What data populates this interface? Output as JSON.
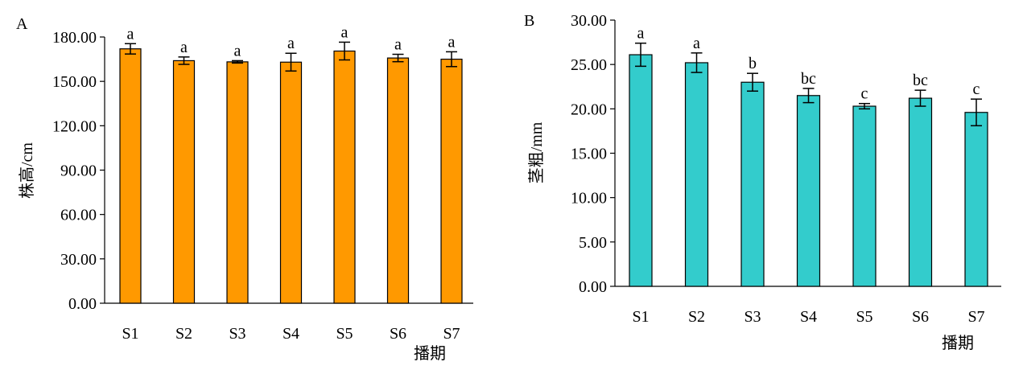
{
  "chart_data": [
    {
      "type": "bar",
      "panel_label": "A",
      "ylabel": "株高/cm",
      "xlabel": "播期",
      "categories": [
        "S1",
        "S2",
        "S3",
        "S4",
        "S5",
        "S6",
        "S7"
      ],
      "values": [
        172.0,
        164.0,
        163.2,
        163.0,
        170.5,
        165.8,
        165.0
      ],
      "errors": [
        3.5,
        2.5,
        0.8,
        6.0,
        6.0,
        2.5,
        5.0
      ],
      "significance": [
        "a",
        "a",
        "a",
        "a",
        "a",
        "a",
        "a"
      ],
      "ylim": [
        0,
        180
      ],
      "yticks": [
        "0.00",
        "30.00",
        "60.00",
        "90.00",
        "120.00",
        "150.00",
        "180.00"
      ],
      "bar_color": "#FF9900",
      "grid": false
    },
    {
      "type": "bar",
      "panel_label": "B",
      "ylabel": "茎粗/mm",
      "xlabel": "播期",
      "categories": [
        "S1",
        "S2",
        "S3",
        "S4",
        "S5",
        "S6",
        "S7"
      ],
      "values": [
        26.1,
        25.2,
        23.0,
        21.5,
        20.3,
        21.2,
        19.6
      ],
      "errors": [
        1.3,
        1.1,
        1.0,
        0.8,
        0.3,
        0.9,
        1.5
      ],
      "significance": [
        "a",
        "a",
        "b",
        "bc",
        "c",
        "bc",
        "c"
      ],
      "ylim": [
        0,
        30
      ],
      "yticks": [
        "0.00",
        "5.00",
        "10.00",
        "15.00",
        "20.00",
        "25.00",
        "30.00"
      ],
      "bar_color": "#33CCCC",
      "grid": false
    }
  ]
}
